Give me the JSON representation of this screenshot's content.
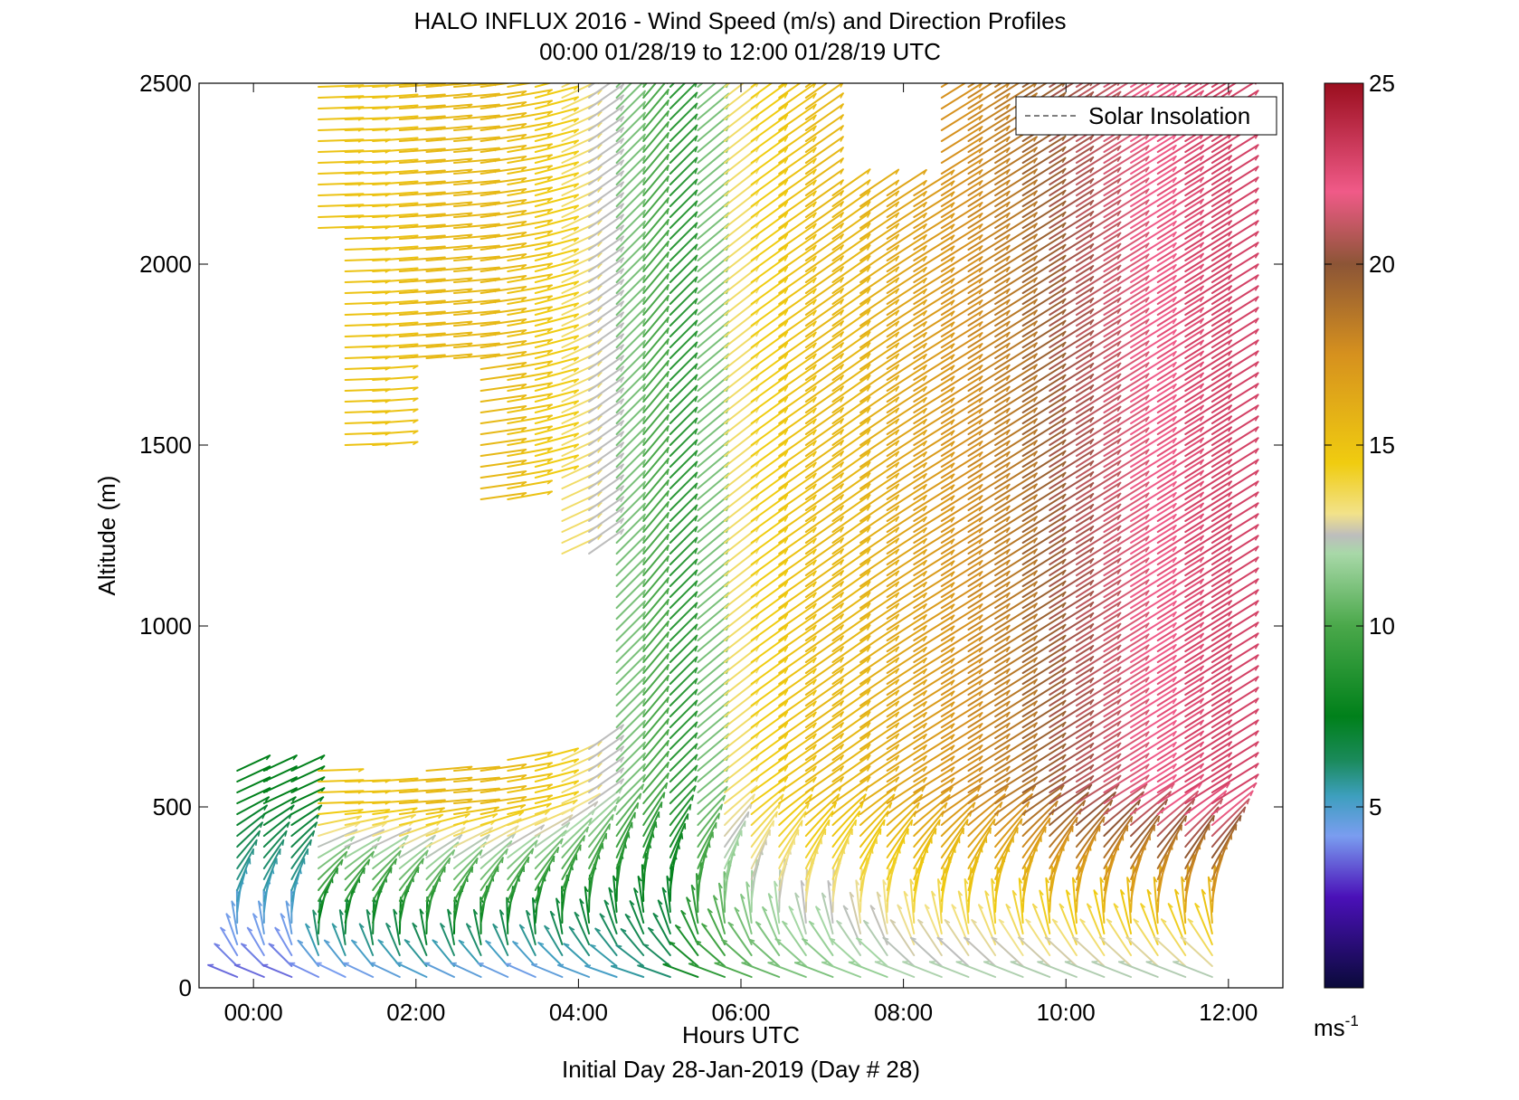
{
  "chart_data": {
    "type": "barbs",
    "title": "HALO INFLUX 2016 - Wind Speed (m/s) and Direction Profiles",
    "subtitle": "00:00 01/28/19 to 12:00 01/28/19  UTC",
    "xlabel": "Hours UTC",
    "xlabel2": "Initial Day 28-Jan-2019 (Day # 28)",
    "ylabel": "Altitude (m)",
    "xlim": [
      -0.67,
      12.67
    ],
    "ylim": [
      0,
      2500
    ],
    "x_ticks": [
      {
        "value": 0,
        "label": "00:00"
      },
      {
        "value": 2,
        "label": "02:00"
      },
      {
        "value": 4,
        "label": "04:00"
      },
      {
        "value": 6,
        "label": "06:00"
      },
      {
        "value": 8,
        "label": "08:00"
      },
      {
        "value": 10,
        "label": "10:00"
      },
      {
        "value": 12,
        "label": "12:00"
      }
    ],
    "y_ticks": [
      {
        "value": 0,
        "label": "0"
      },
      {
        "value": 500,
        "label": "500"
      },
      {
        "value": 1000,
        "label": "1000"
      },
      {
        "value": 1500,
        "label": "1500"
      },
      {
        "value": 2000,
        "label": "2000"
      },
      {
        "value": 2500,
        "label": "2500"
      }
    ],
    "legend": {
      "label": "Solar Insolation",
      "position": "top-right",
      "line_style": "dashed",
      "color": "#555555"
    },
    "colorbar": {
      "range": [
        0,
        25
      ],
      "ticks": [
        {
          "value": 5,
          "label": "5"
        },
        {
          "value": 10,
          "label": "10"
        },
        {
          "value": 15,
          "label": "15"
        },
        {
          "value": 20,
          "label": "20"
        },
        {
          "value": 25,
          "label": "25"
        }
      ],
      "unit_base": "ms",
      "unit_exp": "-1",
      "stops": [
        {
          "v": 0,
          "c": "#0a0a3a"
        },
        {
          "v": 2.5,
          "c": "#4a10b8"
        },
        {
          "v": 4.2,
          "c": "#7a9df0"
        },
        {
          "v": 5.3,
          "c": "#3d9fbe"
        },
        {
          "v": 6.3,
          "c": "#1a8a5a"
        },
        {
          "v": 7.5,
          "c": "#00801a"
        },
        {
          "v": 10,
          "c": "#4aa84a"
        },
        {
          "v": 12,
          "c": "#a8d8a8"
        },
        {
          "v": 12.5,
          "c": "#bdbdbd"
        },
        {
          "v": 13.1,
          "c": "#f2e28a"
        },
        {
          "v": 14.5,
          "c": "#f0cc10"
        },
        {
          "v": 17.5,
          "c": "#d6911e"
        },
        {
          "v": 20,
          "c": "#8c5536"
        },
        {
          "v": 22,
          "c": "#f05a88"
        },
        {
          "v": 25,
          "c": "#9a0e1e"
        }
      ]
    },
    "barbs": {
      "times": [
        -0.2,
        0.13,
        0.47,
        0.8,
        1.13,
        1.47,
        1.8,
        2.13,
        2.47,
        2.8,
        3.13,
        3.47,
        3.8,
        4.13,
        4.47,
        4.8,
        5.13,
        5.47,
        5.8,
        6.13,
        6.47,
        6.8,
        7.13,
        7.47,
        7.8,
        8.13,
        8.47,
        8.8,
        9.13,
        9.47,
        9.8,
        10.13,
        10.47,
        10.8,
        11.13,
        11.47,
        11.8
      ],
      "altitude_spacing_m": 30,
      "max_altitude_m": 2500,
      "coverage_m": [
        [
          0,
          600
        ],
        [
          0,
          610
        ],
        [
          0,
          600
        ],
        [
          0,
          600,
          2090,
          2490
        ],
        [
          0,
          590,
          1490,
          2490
        ],
        [
          0,
          590,
          1490,
          2490
        ],
        [
          0,
          590,
          1720,
          2490
        ],
        [
          0,
          600,
          1720,
          2490
        ],
        [
          0,
          600,
          1720,
          2490
        ],
        [
          0,
          620,
          1340,
          2490
        ],
        [
          0,
          630,
          1340,
          2490
        ],
        [
          0,
          640,
          1400,
          2490
        ],
        [
          0,
          650,
          1190,
          2490
        ],
        [
          0,
          660,
          1190,
          2490
        ],
        [
          0,
          2490
        ],
        [
          0,
          2490
        ],
        [
          0,
          2490
        ],
        [
          0,
          2490
        ],
        [
          0,
          2490
        ],
        [
          0,
          2490
        ],
        [
          0,
          2490
        ],
        [
          0,
          2490
        ],
        [
          0,
          2190
        ],
        [
          0,
          2190
        ],
        [
          0,
          2190
        ],
        [
          0,
          2190
        ],
        [
          0,
          2490
        ],
        [
          0,
          2490
        ],
        [
          0,
          2490
        ],
        [
          0,
          2490
        ],
        [
          0,
          2490
        ],
        [
          0,
          2490
        ],
        [
          0,
          2490
        ],
        [
          0,
          2490
        ],
        [
          0,
          2490
        ],
        [
          0,
          2490
        ],
        [
          0,
          2490
        ]
      ],
      "speed_near_surface_ms": [
        3.5,
        3.5,
        3.5,
        3.8,
        4.0,
        4.2,
        4.5,
        4.8,
        4.5,
        4.5,
        4.3,
        4.2,
        4.5,
        4.8,
        5.0,
        5.5,
        6.0,
        8.0,
        9.0,
        10.0,
        10.5,
        11.0,
        11.0,
        11.5,
        11.5,
        12.0,
        12.0,
        12.0,
        12.0,
        12.0,
        12.0,
        12.0,
        12.0,
        12.0,
        12.0,
        12.0,
        12.0
      ],
      "speed_aloft_ms": [
        7.5,
        7.5,
        7.5,
        15.0,
        15.0,
        15.0,
        15.5,
        15.5,
        15.5,
        15.5,
        15.0,
        14.5,
        13.5,
        12.5,
        11.0,
        10.0,
        9.0,
        11.0,
        13.5,
        14.5,
        15.0,
        15.5,
        15.5,
        16.0,
        16.5,
        17.0,
        17.5,
        18.0,
        18.5,
        19.5,
        20.5,
        21.0,
        21.5,
        22.0,
        22.5,
        23.0,
        23.0
      ],
      "direction_aloft_deg": [
        245,
        245,
        245,
        268,
        268,
        266,
        266,
        265,
        265,
        262,
        260,
        255,
        245,
        235,
        225,
        220,
        225,
        230,
        232,
        234,
        235,
        235,
        235,
        236,
        237,
        238,
        238,
        238,
        238,
        238,
        238,
        238,
        238,
        238,
        238,
        238,
        238
      ]
    }
  }
}
